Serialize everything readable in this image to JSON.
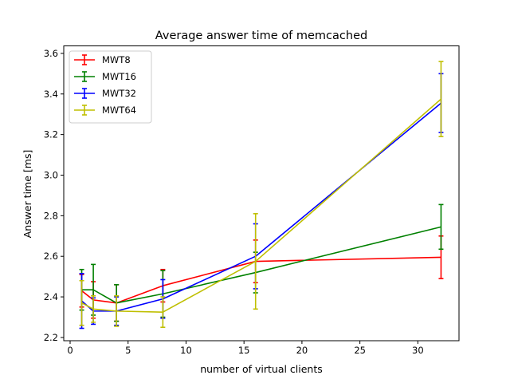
{
  "chart_data": {
    "type": "line",
    "title": "Average answer time of memcached",
    "xlabel": "number of virtual clients",
    "ylabel": "Answer time [ms]",
    "xlim": [
      -0.55,
      33.55
    ],
    "ylim": [
      2.184,
      3.637
    ],
    "xticks": [
      0,
      5,
      10,
      15,
      20,
      25,
      30
    ],
    "yticks": [
      2.2,
      2.4,
      2.6,
      2.8,
      3.0,
      3.2,
      3.4,
      3.6
    ],
    "xtick_labels": [
      "0",
      "5",
      "10",
      "15",
      "20",
      "25",
      "30"
    ],
    "ytick_labels": [
      "2.2",
      "2.4",
      "2.6",
      "2.8",
      "3.0",
      "3.2",
      "3.4",
      "3.6"
    ],
    "grid": false,
    "legend_position": "top-left",
    "x": [
      1,
      2,
      4,
      8,
      16,
      32
    ],
    "series": [
      {
        "name": "MWT8",
        "color": "#ff0000",
        "values": [
          2.43,
          2.385,
          2.37,
          2.455,
          2.575,
          2.595
        ],
        "error": [
          0.08,
          0.09,
          0.09,
          0.08,
          0.105,
          0.105
        ]
      },
      {
        "name": "MWT16",
        "color": "#008000",
        "values": [
          2.435,
          2.435,
          2.37,
          2.415,
          2.52,
          2.745
        ],
        "error": [
          0.1,
          0.125,
          0.09,
          0.115,
          0.1,
          0.11
        ]
      },
      {
        "name": "MWT32",
        "color": "#0000ff",
        "values": [
          2.38,
          2.33,
          2.33,
          2.39,
          2.6,
          3.355
        ],
        "error": [
          0.135,
          0.065,
          0.07,
          0.095,
          0.16,
          0.145
        ]
      },
      {
        "name": "MWT64",
        "color": "#bfbf00",
        "values": [
          2.37,
          2.34,
          2.33,
          2.325,
          2.575,
          3.375
        ],
        "error": [
          0.11,
          0.065,
          0.075,
          0.075,
          0.235,
          0.185
        ]
      }
    ]
  }
}
